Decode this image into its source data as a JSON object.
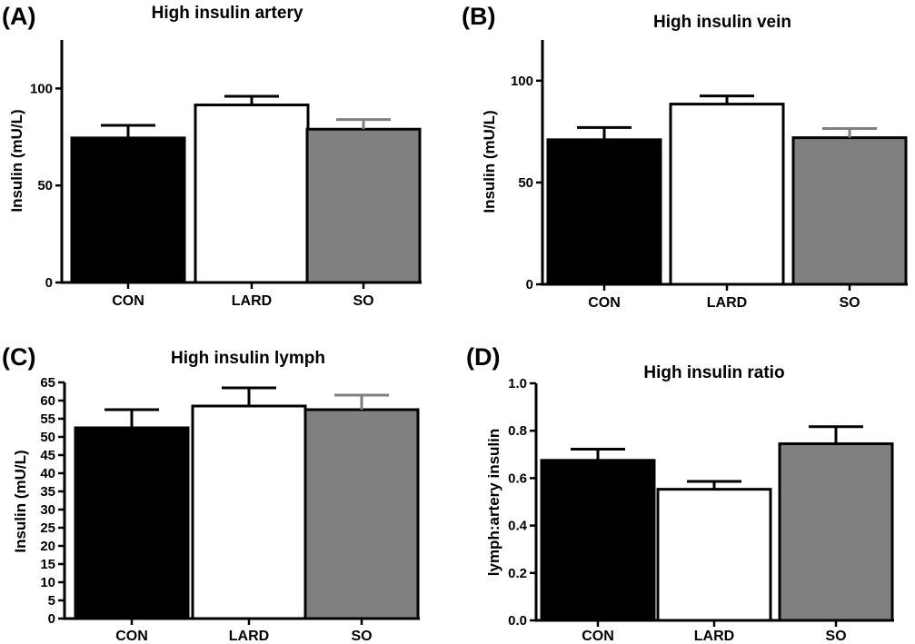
{
  "chart_data": [
    {
      "panel": "(A)",
      "type": "bar",
      "title": "High insulin artery",
      "ylabel": "Insulin (mU/L)",
      "xlabel": "",
      "categories": [
        "CON",
        "LARD",
        "SO"
      ],
      "values": [
        74.5,
        91.5,
        79
      ],
      "errors": [
        6.5,
        4.5,
        5
      ],
      "bar_colors": [
        "#000000",
        "#ffffff",
        "#808080"
      ],
      "error_colors": [
        "#000000",
        "#000000",
        "#808080"
      ],
      "ylim": [
        0,
        125
      ],
      "yticks": [
        0,
        50,
        100
      ]
    },
    {
      "panel": "(B)",
      "type": "bar",
      "title": "High insulin vein",
      "ylabel": "Insulin (mU/L)",
      "xlabel": "",
      "categories": [
        "CON",
        "LARD",
        "SO"
      ],
      "values": [
        71,
        88.5,
        72
      ],
      "errors": [
        6,
        4,
        4.5
      ],
      "bar_colors": [
        "#000000",
        "#ffffff",
        "#808080"
      ],
      "error_colors": [
        "#000000",
        "#000000",
        "#808080"
      ],
      "ylim": [
        0,
        120
      ],
      "yticks": [
        0,
        50,
        100
      ]
    },
    {
      "panel": "(C)",
      "type": "bar",
      "title": "High insulin lymph",
      "ylabel": "Insulin (mU/L)",
      "xlabel": "",
      "categories": [
        "CON",
        "LARD",
        "SO"
      ],
      "values": [
        52.5,
        58.5,
        57.5
      ],
      "errors": [
        5,
        5,
        4
      ],
      "bar_colors": [
        "#000000",
        "#ffffff",
        "#808080"
      ],
      "error_colors": [
        "#000000",
        "#000000",
        "#808080"
      ],
      "ylim": [
        0,
        65
      ],
      "yticks": [
        0,
        5,
        10,
        15,
        20,
        25,
        30,
        35,
        40,
        45,
        50,
        55,
        60,
        65
      ]
    },
    {
      "panel": "(D)",
      "type": "bar",
      "title": "High insulin ratio",
      "ylabel": "lymph:artery insulin",
      "xlabel": "",
      "categories": [
        "CON",
        "LARD",
        "SO"
      ],
      "values": [
        0.675,
        0.553,
        0.745
      ],
      "errors": [
        0.047,
        0.033,
        0.072
      ],
      "bar_colors": [
        "#000000",
        "#ffffff",
        "#808080"
      ],
      "error_colors": [
        "#000000",
        "#000000",
        "#000000"
      ],
      "ylim": [
        0,
        1.0
      ],
      "yticks": [
        "0.0",
        "0.2",
        "0.4",
        "0.6",
        "0.8",
        "1.0"
      ]
    }
  ]
}
